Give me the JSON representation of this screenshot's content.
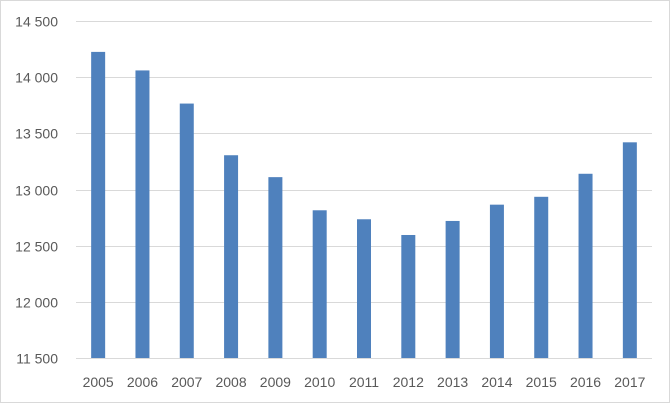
{
  "chart_data": {
    "type": "bar",
    "title": "",
    "xlabel": "",
    "ylabel": "",
    "categories": [
      "2005",
      "2006",
      "2007",
      "2008",
      "2009",
      "2010",
      "2011",
      "2012",
      "2013",
      "2014",
      "2015",
      "2016",
      "2017"
    ],
    "series": [
      {
        "color": "#4f81bd",
        "values": [
          14225,
          14060,
          13765,
          13305,
          13110,
          12815,
          12735,
          12595,
          12720,
          12865,
          12935,
          13140,
          13420
        ]
      }
    ],
    "ylim": [
      11500,
      14500
    ],
    "yticks": [
      11500,
      12000,
      12500,
      13000,
      13500,
      14000,
      14500
    ],
    "ytick_labels": [
      "11 500",
      "12 000",
      "12 500",
      "13 000",
      "13 500",
      "14 000",
      "14 500"
    ],
    "grid": true,
    "legend": "none"
  }
}
